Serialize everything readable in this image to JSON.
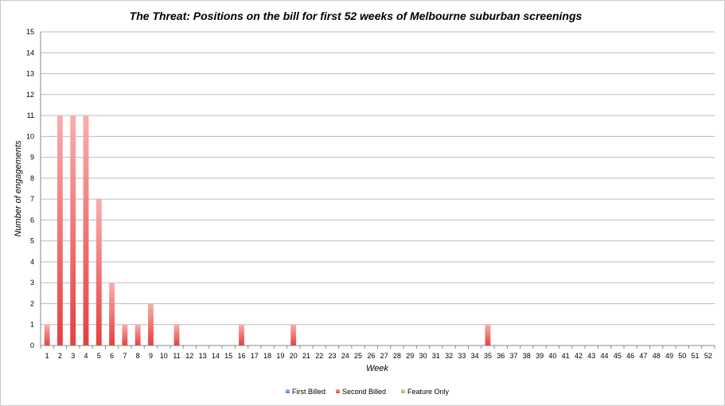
{
  "chart_data": {
    "type": "bar",
    "title": "The Threat: Positions on the bill for first 52 weeks of Melbourne suburban screenings",
    "xlabel": "Week",
    "ylabel": "Number of engagements",
    "ylim": [
      0,
      15
    ],
    "yticks": [
      "0",
      "1",
      "2",
      "3",
      "4",
      "5",
      "6",
      "7",
      "8",
      "9",
      "10",
      "11",
      "12",
      "13",
      "14",
      "15"
    ],
    "grid": true,
    "legend_position": "bottom",
    "categories": [
      "1",
      "2",
      "3",
      "4",
      "5",
      "6",
      "7",
      "8",
      "9",
      "10",
      "11",
      "12",
      "13",
      "14",
      "15",
      "16",
      "17",
      "18",
      "19",
      "20",
      "21",
      "22",
      "23",
      "24",
      "25",
      "26",
      "27",
      "28",
      "29",
      "30",
      "31",
      "32",
      "33",
      "34",
      "35",
      "36",
      "37",
      "38",
      "39",
      "40",
      "41",
      "42",
      "43",
      "44",
      "45",
      "46",
      "47",
      "48",
      "49",
      "50",
      "51",
      "52"
    ],
    "stacked": true,
    "series": [
      {
        "name": "First Billed",
        "color": "#5b9bd5",
        "values": [
          0,
          0,
          0,
          0,
          0,
          0,
          0,
          0,
          0,
          0,
          0,
          0,
          0,
          0,
          0,
          0,
          0,
          0,
          0,
          0,
          0,
          0,
          0,
          0,
          0,
          0,
          0,
          0,
          0,
          0,
          0,
          0,
          0,
          0,
          0,
          0,
          0,
          0,
          0,
          0,
          0,
          0,
          0,
          0,
          0,
          0,
          0,
          0,
          0,
          0,
          0,
          0
        ]
      },
      {
        "name": "Second Billed",
        "color": "#e8403e",
        "values": [
          1,
          11,
          11,
          11,
          7,
          3,
          1,
          1,
          2,
          0,
          1,
          0,
          0,
          0,
          0,
          1,
          0,
          0,
          0,
          1,
          0,
          0,
          0,
          0,
          0,
          0,
          0,
          0,
          0,
          0,
          0,
          0,
          0,
          0,
          1,
          0,
          0,
          0,
          0,
          0,
          0,
          0,
          0,
          0,
          0,
          0,
          0,
          0,
          0,
          0,
          0,
          0
        ]
      },
      {
        "name": "Feature Only",
        "color": "#9bd45a",
        "values": [
          0,
          0,
          0,
          0,
          0,
          0,
          0,
          0,
          0,
          0,
          0,
          0,
          0,
          0,
          0,
          0,
          0,
          0,
          0,
          0,
          0,
          0,
          0,
          0,
          0,
          0,
          0,
          0,
          0,
          0,
          0,
          0,
          0,
          0,
          0,
          0,
          0,
          0,
          0,
          0,
          0,
          0,
          0,
          0,
          0,
          0,
          0,
          0,
          0,
          0,
          0,
          0
        ]
      }
    ]
  }
}
